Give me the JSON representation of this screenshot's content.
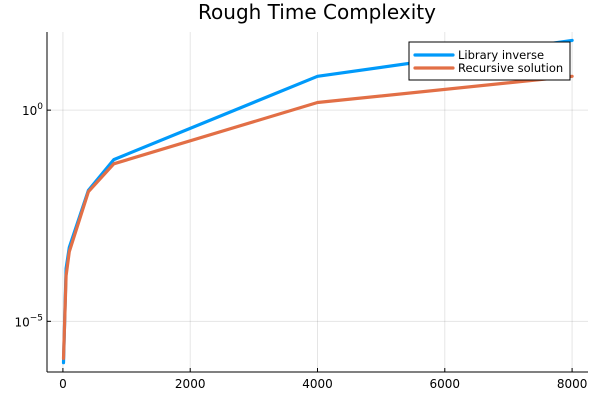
{
  "chart_data": {
    "type": "line",
    "title": "Rough Time Complexity",
    "xlabel": "",
    "ylabel": "",
    "y_scale": "log10",
    "xlim": [
      -250,
      8250
    ],
    "ylim_log10": [
      -6.2,
      1.85
    ],
    "x_ticks": [
      0,
      2000,
      4000,
      6000,
      8000
    ],
    "x_tick_labels": [
      "0",
      "2000",
      "4000",
      "6000",
      "8000"
    ],
    "y_ticks": [
      {
        "log10": 0,
        "base": "10",
        "exp": "0"
      },
      {
        "log10": -5,
        "base": "10",
        "exp": "−5"
      }
    ],
    "grid": true,
    "legend_position": "top-right",
    "series": [
      {
        "name": "Library inverse",
        "color": "#009AFA",
        "x": [
          10,
          50,
          100,
          400,
          800,
          4000,
          8000
        ],
        "log10_y": [
          -5.98,
          -3.75,
          -3.25,
          -1.9,
          -1.17,
          0.8,
          1.65
        ]
      },
      {
        "name": "Recursive solution",
        "color": "#E26F46",
        "x": [
          10,
          50,
          100,
          400,
          800,
          4000,
          8000
        ],
        "log10_y": [
          -5.88,
          -3.92,
          -3.35,
          -1.93,
          -1.27,
          0.18,
          0.8
        ]
      }
    ]
  }
}
